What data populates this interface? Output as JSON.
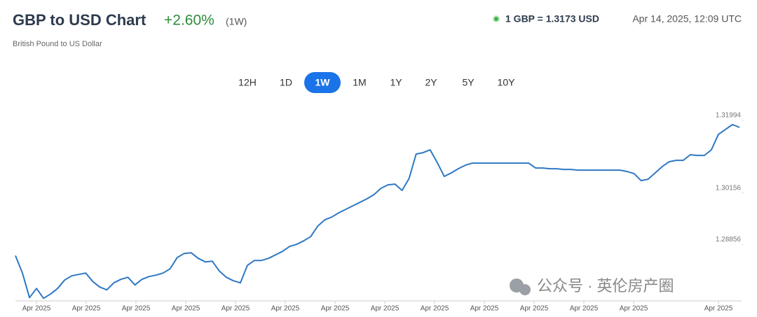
{
  "header": {
    "title": "GBP to USD Chart",
    "change": "+2.60%",
    "period": "(1W)",
    "subtitle": "British Pound to US Dollar",
    "rate": "1 GBP = 1.3173 USD",
    "timestamp": "Apr 14, 2025, 12:09 UTC"
  },
  "tabs": {
    "items": [
      "12H",
      "1D",
      "1W",
      "1M",
      "1Y",
      "2Y",
      "5Y",
      "10Y"
    ],
    "active": "1W"
  },
  "watermark": "公众号 · 英伦房产圈",
  "chart_data": {
    "type": "line",
    "xtick_labels": [
      "Apr 2025",
      "Apr 2025",
      "Apr 2025",
      "Apr 2025",
      "Apr 2025",
      "Apr 2025",
      "Apr 2025",
      "Apr 2025",
      "Apr 2025",
      "Apr 2025",
      "Apr 2025",
      "Apr 2025",
      "Apr 2025",
      "Apr 2025"
    ],
    "series": [
      {
        "name": "GBP/USD",
        "color": "#2f78c4",
        "values": [
          1.28448,
          1.28005,
          1.27384,
          1.27615,
          1.27366,
          1.27473,
          1.27615,
          1.27827,
          1.27934,
          1.27969,
          1.28005,
          1.27792,
          1.2765,
          1.27579,
          1.27757,
          1.27845,
          1.27898,
          1.27703,
          1.27845,
          1.27916,
          1.27952,
          1.28005,
          1.28111,
          1.28395,
          1.28501,
          1.28519,
          1.28377,
          1.28288,
          1.28306,
          1.28058,
          1.27898,
          1.2781,
          1.27757,
          1.282,
          1.28324,
          1.28324,
          1.28377,
          1.28466,
          1.28554,
          1.28678,
          1.28732,
          1.2882,
          1.28927,
          1.29193,
          1.29352,
          1.29423,
          1.2953,
          1.29618,
          1.29707,
          1.29795,
          1.29884,
          1.29991,
          1.3015,
          1.30239,
          1.30256,
          1.30097,
          1.30398,
          1.31019,
          1.31054,
          1.31125,
          1.30806,
          1.30451,
          1.3054,
          1.30647,
          1.30735,
          1.30788,
          1.30788,
          1.30788,
          1.30788,
          1.30788,
          1.30788,
          1.30788,
          1.30788,
          1.30788,
          1.30664,
          1.30664,
          1.30647,
          1.30647,
          1.30629,
          1.30629,
          1.30611,
          1.30611,
          1.30611,
          1.30611,
          1.30611,
          1.30611,
          1.30611,
          1.30576,
          1.30522,
          1.30345,
          1.30381,
          1.3054,
          1.307,
          1.30824,
          1.30859,
          1.30859,
          1.31001,
          1.30983,
          1.30983,
          1.31125,
          1.31515,
          1.31639,
          1.31764,
          1.31693
        ]
      }
    ],
    "ylim": [
      1.273,
      1.3226
    ],
    "yticks": [
      1.31994,
      1.30156,
      1.28856
    ]
  }
}
